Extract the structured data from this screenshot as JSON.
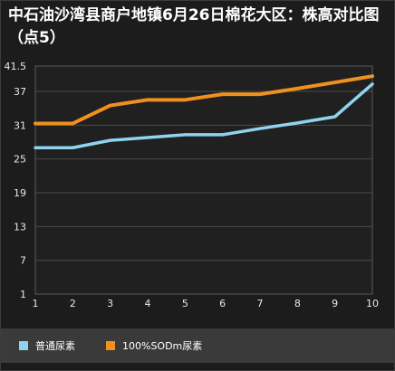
{
  "title": "中石油沙湾县商户地镇6月26日棉花大区：株高对比图（点5）",
  "chart_data": {
    "type": "line",
    "title": "中石油沙湾县商户地镇6月26日棉花大区：株高对比图（点5）",
    "x": [
      1,
      2,
      3,
      4,
      5,
      6,
      7,
      8,
      9,
      10
    ],
    "yticks": [
      1,
      7,
      13,
      19,
      25,
      31,
      37,
      41.5
    ],
    "ylim": [
      1,
      41.5
    ],
    "xlim": [
      1,
      10
    ],
    "grid": true,
    "legend_position": "bottom",
    "series": [
      {
        "name": "普通尿素",
        "color": "#8fd3ee",
        "values": [
          27.0,
          27.0,
          28.3,
          28.8,
          29.3,
          29.3,
          30.4,
          31.4,
          32.5,
          38.3
        ]
      },
      {
        "name": "100%SODm尿素",
        "color": "#f0901e",
        "values": [
          31.3,
          31.3,
          34.5,
          35.5,
          35.5,
          36.5,
          36.5,
          37.5,
          38.6,
          39.7
        ]
      }
    ]
  }
}
